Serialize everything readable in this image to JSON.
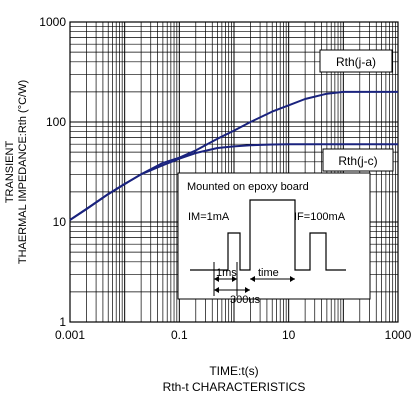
{
  "chart_data": {
    "type": "line",
    "x_scale": "log",
    "y_scale": "log",
    "xlim": [
      0.001,
      1000
    ],
    "ylim": [
      1,
      1000
    ],
    "x_ticks": [
      "0.001",
      "0.1",
      "10",
      "1000"
    ],
    "y_ticks": [
      "1",
      "10",
      "100",
      "1000"
    ],
    "x_tick_values": [
      0.001,
      0.1,
      10,
      1000
    ],
    "y_tick_values": [
      1,
      10,
      100,
      1000
    ],
    "xlabel": "TIME:t(s)",
    "ylabel_line1": "TRANSIENT",
    "ylabel_line2": "THAERMAL IMPEDANCE:Rth (°C/W)",
    "caption": "Rth-t CHARACTERISTICS",
    "grid": true,
    "line_color": "#1a237e",
    "series": [
      {
        "name": "Rth(j-a)",
        "x": [
          0.001,
          0.002,
          0.005,
          0.01,
          0.02,
          0.05,
          0.1,
          0.2,
          0.5,
          1,
          2,
          5,
          10,
          20,
          50,
          100,
          200,
          500,
          1000
        ],
        "y": [
          10.5,
          13.5,
          19,
          24,
          30,
          39,
          44,
          52,
          68,
          82,
          100,
          127,
          147,
          170,
          192,
          200,
          200,
          200,
          200
        ]
      },
      {
        "name": "Rth(j-c)",
        "x": [
          0.001,
          0.002,
          0.005,
          0.01,
          0.02,
          0.05,
          0.1,
          0.2,
          0.5,
          1,
          2,
          5,
          10,
          100,
          1000
        ],
        "y": [
          10.5,
          13.5,
          19,
          24,
          30,
          37,
          43,
          49,
          55,
          57,
          58.5,
          59.5,
          60,
          60,
          60
        ]
      }
    ],
    "annotations": {
      "label_ja": "Rth(j-a)",
      "label_jc": "Rth(j-c)",
      "inset_title": "Mounted on epoxy board",
      "im": "IM=1mA",
      "if": "IF=100mA",
      "t1": "1ms",
      "t2": "time",
      "t3": "300us"
    }
  }
}
